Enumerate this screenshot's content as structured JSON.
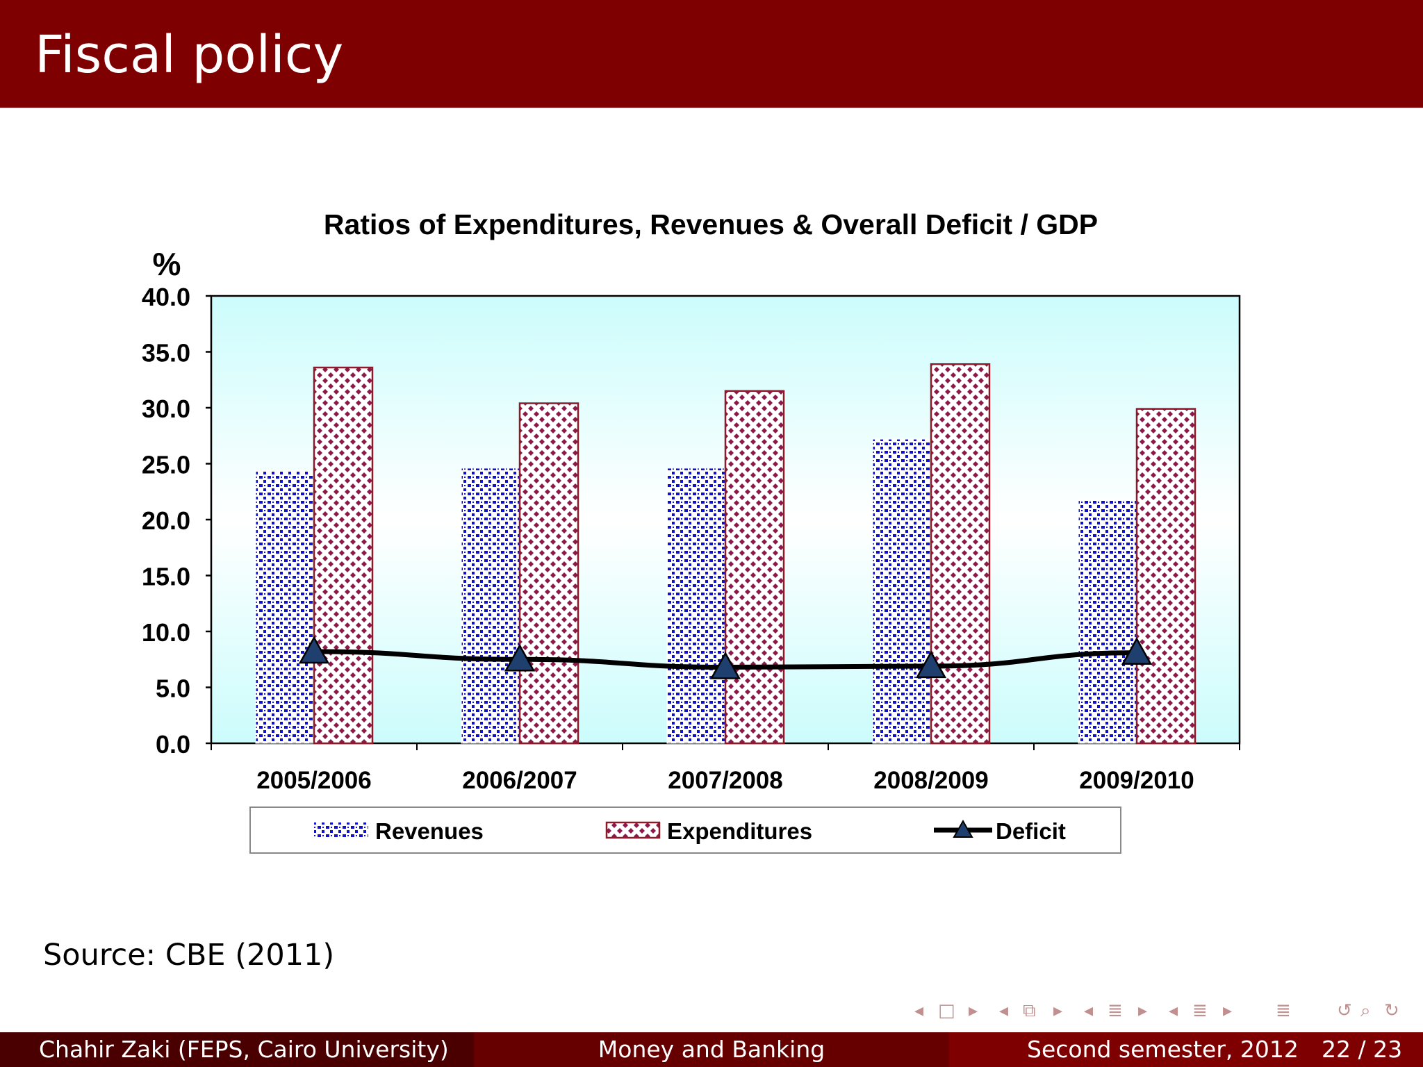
{
  "slide": {
    "title": "Fiscal policy",
    "source": "Source:  CBE (2011)"
  },
  "footer": {
    "author": "Chahir Zaki  (FEPS, Cairo University)",
    "course": "Money and Banking",
    "date": "Second semester, 2012",
    "page": "22 / 23"
  },
  "colors": {
    "header": "#7f0000",
    "revenues": "#1010d0",
    "expenditures": "#8b1a4a",
    "deficit_marker": "#1f3f6f",
    "plot_top": "#ccfcfc"
  },
  "chart_data": {
    "type": "bar",
    "title": "Ratios of  Expenditures, Revenues & Overall Deficit / GDP",
    "ylabel": "%",
    "xlabel": "",
    "ylim": [
      0,
      40
    ],
    "yticks": [
      "0.0",
      "5.0",
      "10.0",
      "15.0",
      "20.0",
      "25.0",
      "30.0",
      "35.0",
      "40.0"
    ],
    "categories": [
      "2005/2006",
      "2006/2007",
      "2007/2008",
      "2008/2009",
      "2009/2010"
    ],
    "series": [
      {
        "name": "Revenues",
        "kind": "bar",
        "values": [
          24.4,
          24.6,
          24.6,
          27.2,
          21.8
        ]
      },
      {
        "name": "Expenditures",
        "kind": "bar",
        "values": [
          33.6,
          30.4,
          31.5,
          33.9,
          29.9
        ]
      },
      {
        "name": "Deficit",
        "kind": "line",
        "values": [
          8.2,
          7.5,
          6.8,
          6.9,
          8.1
        ]
      }
    ],
    "legend_position": "bottom",
    "grid": false
  }
}
